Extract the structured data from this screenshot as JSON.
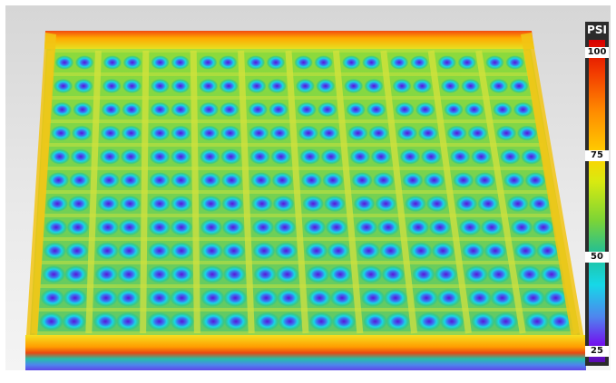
{
  "legend": {
    "title": "PSI",
    "ticks": [
      "100",
      "75",
      "50",
      "25"
    ],
    "min": 25,
    "max": 100
  },
  "color_scale": [
    "#5a0ab0",
    "#7118ee",
    "#4f85ee",
    "#16d8e8",
    "#22bf95",
    "#7cd436",
    "#d8ea10",
    "#ffd200",
    "#ff8a00",
    "#f23a00",
    "#d80000"
  ],
  "surface": {
    "description_grid_cols": 10,
    "description_grid_rows": 12
  }
}
